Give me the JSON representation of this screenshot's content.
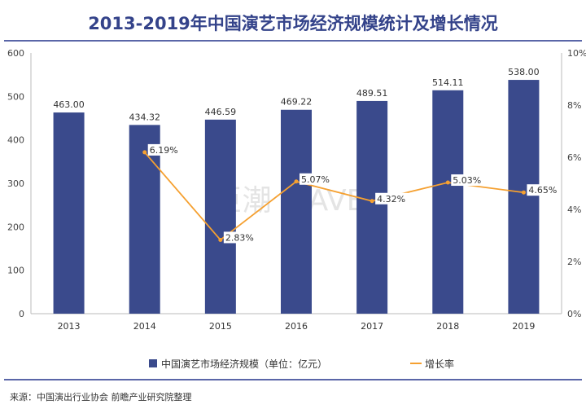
{
  "title": "2013-2019年中国演艺市场经济规模统计及增长情况",
  "source": "来源：中国演出行业协会 前瞻产业研究院整理",
  "watermark": "巨潮 WAVE",
  "colors": {
    "bar": "#3a4a8c",
    "line": "#f5a030",
    "title": "#34438a",
    "rule": "#5a66a8"
  },
  "chart_data": {
    "type": "bar+line",
    "categories": [
      "2013",
      "2014",
      "2015",
      "2016",
      "2017",
      "2018",
      "2019"
    ],
    "series": [
      {
        "name": "中国演艺市场经济规模（单位：亿元）",
        "type": "bar",
        "axis": "left",
        "values": [
          463.0,
          434.32,
          446.59,
          469.22,
          489.51,
          514.11,
          538.0
        ],
        "labels": [
          "463.00",
          "434.32",
          "446.59",
          "469.22",
          "489.51",
          "514.11",
          "538.00"
        ]
      },
      {
        "name": "增长率",
        "type": "line",
        "axis": "right",
        "values": [
          null,
          6.19,
          2.83,
          5.07,
          4.32,
          5.03,
          4.65
        ],
        "labels": [
          null,
          "6.19%",
          "2.83%",
          "5.07%",
          "4.32%",
          "5.03%",
          "4.65%"
        ]
      }
    ],
    "left_axis": {
      "range": [
        0,
        600
      ],
      "ticks": [
        "0",
        "100",
        "200",
        "300",
        "400",
        "500",
        "600"
      ]
    },
    "right_axis": {
      "range": [
        0,
        10
      ],
      "ticks": [
        "0%",
        "2%",
        "4%",
        "6%",
        "8%",
        "10%"
      ]
    },
    "legend_position": "bottom",
    "grid": false
  }
}
